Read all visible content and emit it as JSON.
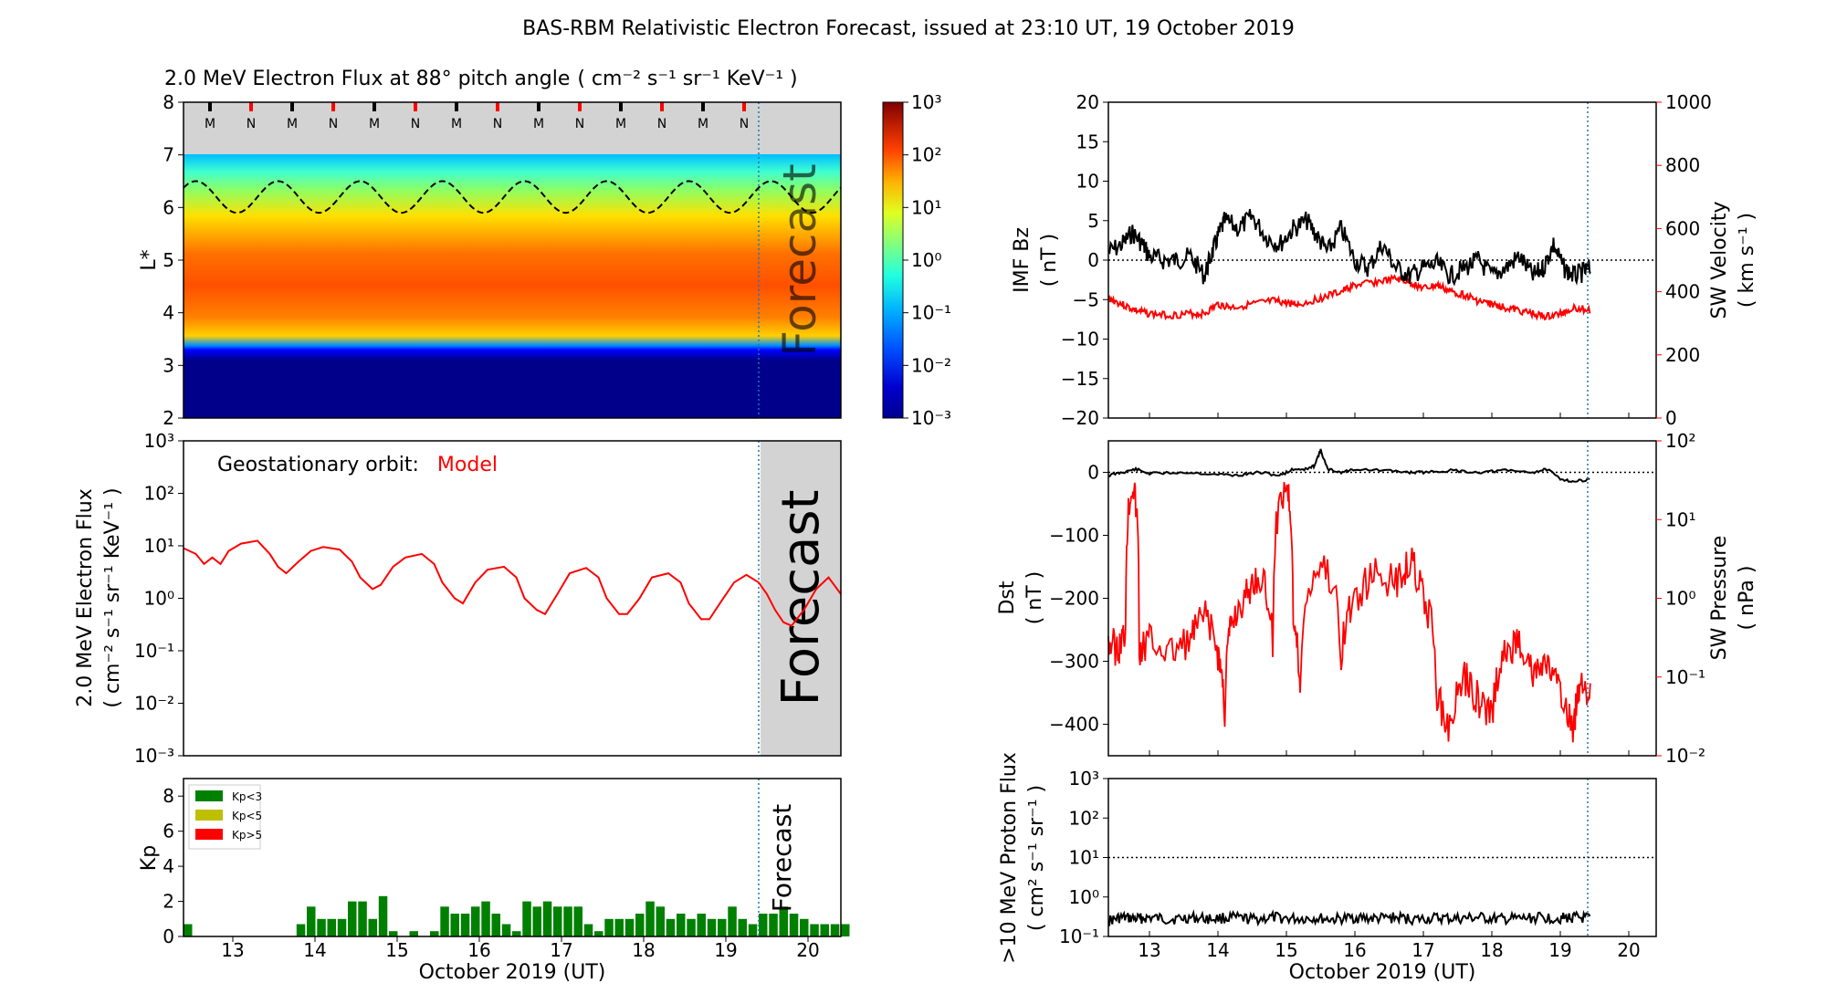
{
  "title": "BAS-RBM Relativistic Electron Forecast, issued at 23:10 UT, 19 October 2019",
  "forecast_label": "Forecast",
  "x_axis": {
    "label": "October 2019 (UT)",
    "range_days": [
      12.4,
      20.4
    ],
    "ticks": [
      "13",
      "14",
      "15",
      "16",
      "17",
      "18",
      "19",
      "20"
    ],
    "forecast_start_day": 19.4
  },
  "colors": {
    "model_red": "#ff0000",
    "forecast_gray": "#d3d3d3",
    "vline_blue": "#1f77b4",
    "kp_low": "#008000",
    "kp_mid": "#bfbf00",
    "kp_high": "#ff0000"
  },
  "chart_data": [
    {
      "id": "flux-heatmap",
      "type": "heatmap",
      "title": "2.0 MeV Electron Flux at 88$^\\circ$ pitch angle",
      "title_display": "2.0 MeV Electron Flux at 88° pitch angle",
      "units_display": "( cm⁻² s⁻¹ sr⁻¹ KeV⁻¹ )",
      "ylabel": "L*",
      "ylim": [
        2,
        8
      ],
      "yticks": [
        "2",
        "3",
        "4",
        "5",
        "6",
        "7",
        "8"
      ],
      "colorbar": {
        "scale": "log",
        "range": [
          0.001,
          1000
        ],
        "tick_labels": [
          "10³",
          "10²",
          "10¹",
          "10⁰",
          "10⁻¹",
          "10⁻²",
          "10⁻³"
        ]
      },
      "no_data_above_L": 7.0,
      "L_profile_log10_flux": [
        [
          2.0,
          -3
        ],
        [
          3.1,
          -3
        ],
        [
          3.3,
          -0.5
        ],
        [
          3.6,
          0.5
        ],
        [
          3.9,
          1.6
        ],
        [
          4.5,
          2.0
        ],
        [
          5.2,
          1.5
        ],
        [
          6.0,
          0.5
        ],
        [
          6.5,
          0.0
        ],
        [
          7.0,
          -1.0
        ]
      ],
      "magnetopause_L_mean": 6.2,
      "magnetopause_L_amplitude": 0.3,
      "orbit_markers": [
        "M",
        "N",
        "M",
        "N",
        "M",
        "N",
        "M",
        "N",
        "M",
        "N",
        "M",
        "N",
        "M",
        "N"
      ]
    },
    {
      "id": "geo-flux",
      "type": "line",
      "annotation_prefix": "Geostationary orbit:",
      "series_label": "Model",
      "ylabel": "2.0 MeV Electron Flux",
      "yunits": "( cm⁻² s⁻¹ sr⁻¹ KeV⁻¹ )",
      "yscale": "log",
      "ylim": [
        0.001,
        1000
      ],
      "ytick_labels": [
        "10³",
        "10²",
        "10¹",
        "10⁰",
        "10⁻¹",
        "10⁻²",
        "10⁻³"
      ],
      "x": [
        12.4,
        12.55,
        12.65,
        12.75,
        12.85,
        12.95,
        13.1,
        13.3,
        13.45,
        13.55,
        13.65,
        13.8,
        13.95,
        14.1,
        14.3,
        14.45,
        14.55,
        14.7,
        14.8,
        14.95,
        15.1,
        15.3,
        15.45,
        15.55,
        15.7,
        15.8,
        15.95,
        16.1,
        16.3,
        16.45,
        16.55,
        16.7,
        16.8,
        16.95,
        17.1,
        17.3,
        17.45,
        17.55,
        17.7,
        17.8,
        17.95,
        18.1,
        18.3,
        18.45,
        18.55,
        18.7,
        18.8,
        18.95,
        19.1,
        19.25,
        19.4,
        19.5,
        19.6,
        19.7,
        19.8,
        19.95,
        20.1,
        20.25,
        20.4
      ],
      "y": [
        9.0,
        7.0,
        4.5,
        6.0,
        4.5,
        8.0,
        11.0,
        12.5,
        7.0,
        4.0,
        3.0,
        5.0,
        8.0,
        9.5,
        8.5,
        5.0,
        2.5,
        1.5,
        1.8,
        4.0,
        6.0,
        7.0,
        4.5,
        2.0,
        1.0,
        0.8,
        2.0,
        3.5,
        4.0,
        2.5,
        1.0,
        0.6,
        0.5,
        1.2,
        3.0,
        3.8,
        2.5,
        1.0,
        0.5,
        0.5,
        1.0,
        2.5,
        3.0,
        2.0,
        0.8,
        0.4,
        0.4,
        0.9,
        2.0,
        2.8,
        2.0,
        1.2,
        0.6,
        0.35,
        0.3,
        0.6,
        1.5,
        2.5,
        1.2
      ]
    },
    {
      "id": "kp",
      "type": "bar",
      "ylabel": "Kp",
      "ylim": [
        0,
        9
      ],
      "yticks": [
        "0",
        "2",
        "4",
        "6",
        "8"
      ],
      "legend": [
        "Kp<3",
        "Kp<5",
        "Kp>5"
      ],
      "bar_width_days": 0.105,
      "x_start_day": 12.4,
      "bin_days": 0.125,
      "values": [
        0.7,
        0,
        0,
        0,
        0,
        0,
        0,
        0,
        0,
        0,
        0,
        0.7,
        1.7,
        1.0,
        1.0,
        1.0,
        2.0,
        2.0,
        1.0,
        2.3,
        0.3,
        0,
        0.3,
        0,
        0.3,
        1.7,
        1.3,
        1.3,
        1.7,
        2.0,
        1.3,
        0.7,
        0.3,
        2.0,
        1.7,
        2.0,
        1.7,
        1.7,
        1.7,
        0.7,
        0.3,
        1.0,
        1.0,
        1.0,
        1.3,
        2.0,
        1.7,
        1.0,
        1.3,
        1.0,
        1.3,
        1.0,
        1.0,
        1.7,
        1.0,
        0.7,
        1.3,
        1.3,
        1.7,
        1.3,
        1.0,
        0.7,
        0.7,
        0.7,
        0.7
      ]
    },
    {
      "id": "imf-sw",
      "type": "line",
      "ylabel_left": "IMF Bz",
      "yunits_left": "( nT )",
      "ylim_left": [
        -20,
        20
      ],
      "yticks_left": [
        "−20",
        "−15",
        "−10",
        "−5",
        "0",
        "5",
        "10",
        "15",
        "20"
      ],
      "ylabel_right": "SW Velocity",
      "yunits_right": "( km s⁻¹ )",
      "ylim_right": [
        0,
        1000
      ],
      "yticks_right": [
        "0",
        "200",
        "400",
        "600",
        "800",
        "1000"
      ],
      "series_bz": {
        "x": [
          12.4,
          12.6,
          12.75,
          12.9,
          13.0,
          13.2,
          13.4,
          13.6,
          13.8,
          13.9,
          14.0,
          14.1,
          14.3,
          14.5,
          14.7,
          14.9,
          15.1,
          15.3,
          15.45,
          15.6,
          15.8,
          16.0,
          16.2,
          16.4,
          16.6,
          16.8,
          17.0,
          17.2,
          17.4,
          17.6,
          17.8,
          18.0,
          18.2,
          18.4,
          18.6,
          18.75,
          18.9,
          19.05,
          19.2,
          19.35,
          19.45
        ],
        "y": [
          1.0,
          2.0,
          3.5,
          2.0,
          0.5,
          0.0,
          0.0,
          0.5,
          -2.0,
          0.5,
          3.0,
          5.0,
          4.0,
          5.5,
          3.0,
          2.0,
          4.0,
          5.0,
          3.0,
          1.0,
          4.0,
          0.0,
          -1.0,
          2.0,
          -1.0,
          -2.0,
          -1.0,
          -0.5,
          -2.0,
          -1.0,
          0.0,
          -2.0,
          -1.0,
          0.5,
          -2.0,
          -1.0,
          2.0,
          -1.0,
          -2.0,
          -1.5,
          -1.0
        ]
      },
      "series_velocity": {
        "x": [
          12.4,
          12.6,
          12.8,
          13.0,
          13.3,
          13.6,
          13.8,
          14.0,
          14.2,
          14.5,
          14.8,
          15.0,
          15.2,
          15.5,
          15.8,
          16.0,
          16.3,
          16.6,
          16.8,
          17.0,
          17.2,
          17.4,
          17.6,
          17.8,
          18.0,
          18.2,
          18.4,
          18.6,
          18.8,
          19.0,
          19.2,
          19.45
        ],
        "y": [
          380,
          360,
          340,
          330,
          325,
          330,
          330,
          360,
          350,
          360,
          370,
          365,
          360,
          380,
          400,
          420,
          430,
          440,
          430,
          410,
          420,
          400,
          390,
          370,
          360,
          350,
          340,
          330,
          320,
          330,
          350,
          340
        ]
      },
      "zero_line": 0
    },
    {
      "id": "dst-pressure",
      "type": "line",
      "ylabel_left": "Dst",
      "yunits_left": "( nT )",
      "ylim_left": [
        -450,
        50
      ],
      "yticks_left": [
        "−400",
        "−300",
        "−200",
        "−100",
        "0"
      ],
      "ylabel_right": "SW Pressure",
      "yunits_right": "( nPa )",
      "ylim_right": [
        0.01,
        100
      ],
      "yticks_right": [
        "10⁻²",
        "10⁻¹",
        "10⁰",
        "10¹",
        "10²"
      ],
      "series_dst": {
        "x": [
          12.4,
          12.6,
          12.8,
          13.0,
          13.5,
          14.0,
          14.3,
          14.6,
          14.9,
          15.1,
          15.3,
          15.4,
          15.5,
          15.6,
          15.8,
          16.0,
          16.4,
          16.8,
          17.0,
          17.4,
          17.8,
          18.2,
          18.6,
          18.8,
          19.0,
          19.2,
          19.45
        ],
        "y": [
          -5,
          0,
          5,
          -2,
          0,
          -3,
          -5,
          0,
          -5,
          5,
          5,
          10,
          35,
          5,
          0,
          5,
          3,
          0,
          0,
          3,
          0,
          3,
          0,
          5,
          -10,
          -15,
          -10
        ]
      },
      "series_pressure": {
        "x": [
          12.4,
          12.55,
          12.65,
          12.75,
          12.85,
          13.0,
          13.3,
          13.6,
          13.8,
          14.0,
          14.1,
          14.2,
          14.4,
          14.6,
          14.8,
          15.0,
          15.1,
          15.2,
          15.5,
          15.8,
          16.0,
          16.3,
          16.6,
          16.8,
          17.0,
          17.2,
          17.4,
          17.6,
          17.8,
          18.0,
          18.2,
          18.4,
          18.6,
          18.8,
          19.0,
          19.2,
          19.3,
          19.45
        ],
        "y": [
          0.3,
          0.2,
          0.4,
          30,
          0.2,
          0.3,
          0.2,
          0.3,
          0.6,
          0.2,
          0.03,
          0.5,
          1.0,
          2.0,
          0.3,
          30,
          0.5,
          0.05,
          3.0,
          0.2,
          1.0,
          2.0,
          1.5,
          3.0,
          1.0,
          0.05,
          0.02,
          0.1,
          0.05,
          0.03,
          0.2,
          0.3,
          0.1,
          0.15,
          0.05,
          0.02,
          0.1,
          0.05
        ]
      },
      "zero_line": 0
    },
    {
      "id": "proton",
      "type": "line",
      "ylabel": ">10 MeV Proton Flux",
      "yunits": "( cm² s⁻¹ sr⁻¹ )",
      "yscale": "log",
      "ylim": [
        0.1,
        1000
      ],
      "ytick_labels": [
        "10³",
        "10²",
        "10¹",
        "10⁰",
        "10⁻¹"
      ],
      "threshold": 10,
      "series": {
        "x": [
          12.4,
          12.6,
          12.8,
          13.0,
          13.3,
          13.6,
          13.9,
          14.2,
          14.5,
          14.8,
          15.1,
          15.4,
          15.7,
          16.0,
          16.3,
          16.6,
          16.9,
          17.2,
          17.5,
          17.8,
          18.1,
          18.4,
          18.7,
          19.0,
          19.2,
          19.45
        ],
        "y": [
          0.25,
          0.3,
          0.28,
          0.3,
          0.27,
          0.3,
          0.28,
          0.3,
          0.27,
          0.3,
          0.28,
          0.29,
          0.27,
          0.3,
          0.28,
          0.3,
          0.27,
          0.29,
          0.28,
          0.3,
          0.27,
          0.28,
          0.3,
          0.29,
          0.3,
          0.28
        ]
      }
    }
  ]
}
